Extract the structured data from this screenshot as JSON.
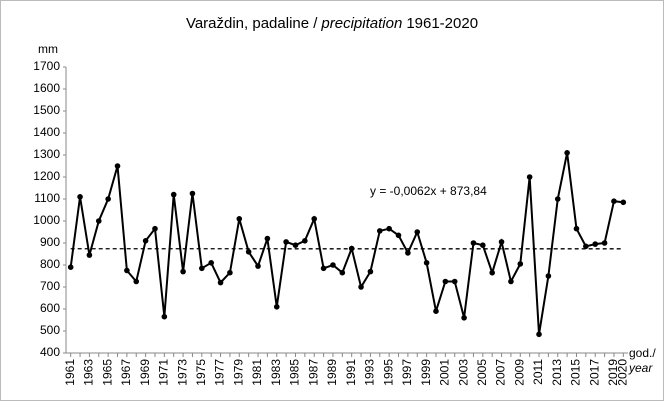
{
  "chart_data": {
    "type": "line",
    "title": [
      "Varaždin, padaline /",
      "precipitation",
      "1961-2020"
    ],
    "y_label": "mm",
    "x_label": [
      "god./",
      "year"
    ],
    "categories": [
      "1961",
      null,
      "1963",
      null,
      "1965",
      null,
      "1967",
      null,
      "1969",
      null,
      "1971",
      null,
      "1973",
      null,
      "1975",
      null,
      "1977",
      null,
      "1979",
      null,
      "1981",
      null,
      "1983",
      null,
      "1985",
      null,
      "1987",
      null,
      "1989",
      null,
      "1991",
      null,
      "1993",
      null,
      "1995",
      null,
      "1997",
      null,
      "1999",
      null,
      "2001",
      null,
      "2003",
      null,
      "2005",
      null,
      "2007",
      null,
      "2009",
      null,
      "2011",
      null,
      "2013",
      null,
      "2015",
      null,
      "2017",
      null,
      "2019",
      "2020"
    ],
    "series": [
      {
        "color": "#000000",
        "values": [
          790,
          1110,
          845,
          1000,
          1100,
          1250,
          775,
          725,
          910,
          965,
          565,
          1120,
          770,
          1125,
          785,
          810,
          720,
          765,
          1010,
          860,
          795,
          920,
          610,
          905,
          890,
          910,
          1010,
          785,
          800,
          765,
          875,
          700,
          770,
          955,
          965,
          935,
          855,
          950,
          810,
          590,
          725,
          725,
          560,
          900,
          890,
          765,
          905,
          725,
          805,
          1200,
          485,
          750,
          1100,
          1310,
          965,
          885,
          895,
          900,
          1090,
          1085
        ]
      }
    ],
    "trend": {
      "label": "y = -0,0062x + 873,84",
      "slope": -0.0062,
      "intercept": 873.84
    },
    "ylim": [
      400,
      1700
    ],
    "yticks": [
      400,
      500,
      600,
      700,
      800,
      900,
      1000,
      1100,
      1200,
      1300,
      1400,
      1500,
      1600,
      1700
    ],
    "grid": false
  }
}
